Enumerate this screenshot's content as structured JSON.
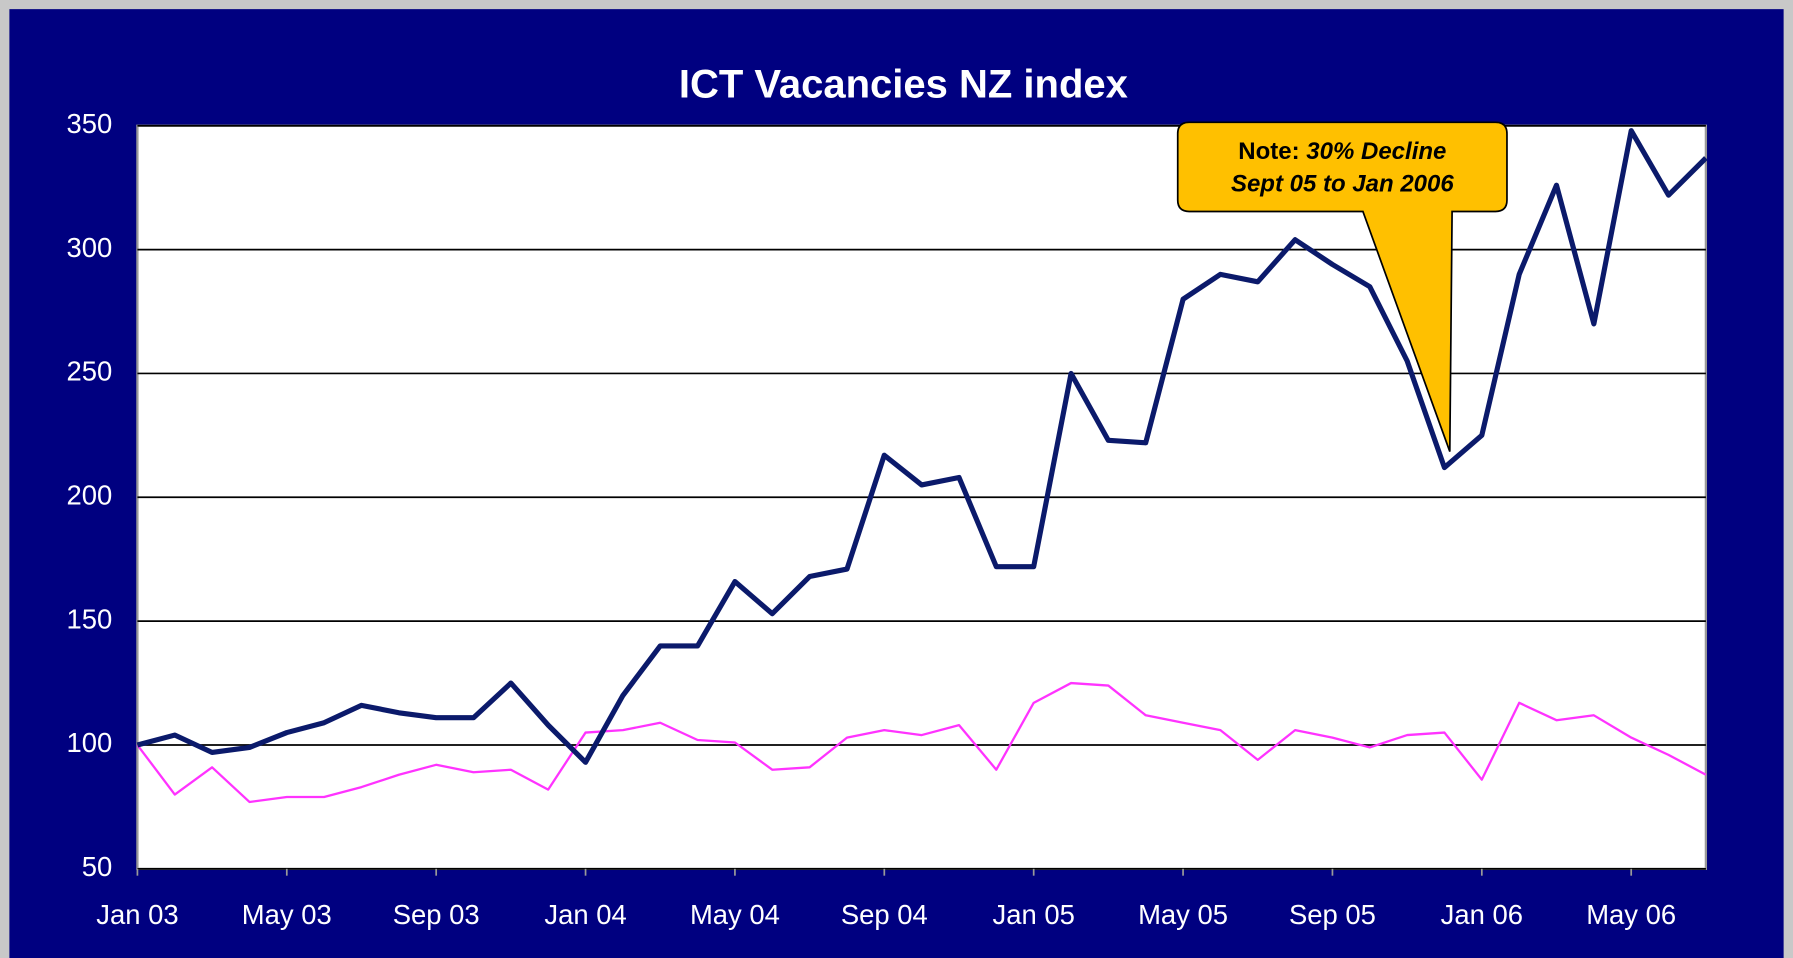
{
  "chart_data": {
    "type": "line",
    "title": "ICT Vacancies NZ index",
    "categories": [
      "Jan 03",
      null,
      null,
      null,
      "May 03",
      null,
      null,
      null,
      "Sep 03",
      null,
      null,
      null,
      "Jan 04",
      null,
      null,
      null,
      "May 04",
      null,
      null,
      null,
      "Sep 04",
      null,
      null,
      null,
      "Jan 05",
      null,
      null,
      null,
      "May 05",
      null,
      null,
      null,
      "Sep 05",
      null,
      null,
      null,
      "Jan 06",
      null,
      null,
      null,
      "May 06",
      null,
      null
    ],
    "series": [
      {
        "color": "#0b1a6b",
        "values": [
          100,
          104,
          97,
          99,
          105,
          109,
          116,
          113,
          111,
          111,
          125,
          108,
          93,
          120,
          140,
          140,
          166,
          153,
          168,
          171,
          217,
          205,
          208,
          172,
          172,
          250,
          223,
          222,
          280,
          290,
          287,
          304,
          294,
          285,
          255,
          212,
          225,
          290,
          326,
          270,
          348,
          322,
          337
        ]
      },
      {
        "color": "#ff33ff",
        "values": [
          100,
          80,
          91,
          77,
          79,
          79,
          83,
          88,
          92,
          89,
          90,
          82,
          105,
          106,
          109,
          102,
          101,
          90,
          91,
          103,
          106,
          104,
          108,
          90,
          117,
          125,
          124,
          112,
          109,
          106,
          94,
          106,
          103,
          99,
          104,
          105,
          86,
          117,
          110,
          112,
          103,
          96,
          88
        ]
      }
    ],
    "ylim": [
      50,
      350
    ],
    "yticks": [
      50,
      100,
      150,
      200,
      250,
      300,
      350
    ],
    "grid": true,
    "annotation": [
      "Note:",
      "30% Decline",
      "Sept 05 to Jan 2006"
    ]
  }
}
